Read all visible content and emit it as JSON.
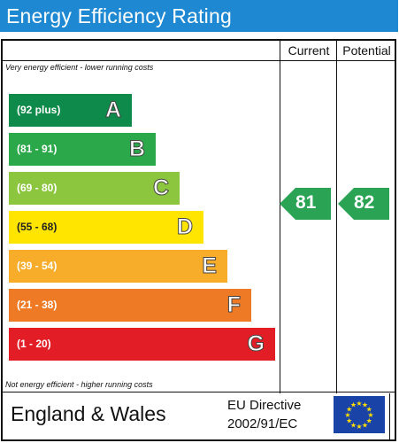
{
  "header": {
    "title": "Energy Efficiency Rating"
  },
  "columns": {
    "current": "Current",
    "potential": "Potential"
  },
  "notes": {
    "top": "Very energy efficient - lower running costs",
    "bottom": "Not energy efficient - higher running costs"
  },
  "footer": {
    "region": "England & Wales",
    "directive_line1": "EU Directive",
    "directive_line2": "2002/91/EC"
  },
  "chart_data": {
    "type": "bar",
    "title": "Energy Efficiency Rating",
    "categories": [
      "A",
      "B",
      "C",
      "D",
      "E",
      "F",
      "G"
    ],
    "ranges": [
      "(92 plus)",
      "(81 - 91)",
      "(69 - 80)",
      "(55 - 68)",
      "(39 - 54)",
      "(21 - 38)",
      "(1 - 20)"
    ],
    "colors": [
      "#0e8a4a",
      "#2aa84a",
      "#8cc63f",
      "#ffe500",
      "#f7ad2a",
      "#ef7a25",
      "#e31d25"
    ],
    "current": {
      "value": 81,
      "band": "B"
    },
    "potential": {
      "value": 82,
      "band": "B"
    }
  }
}
